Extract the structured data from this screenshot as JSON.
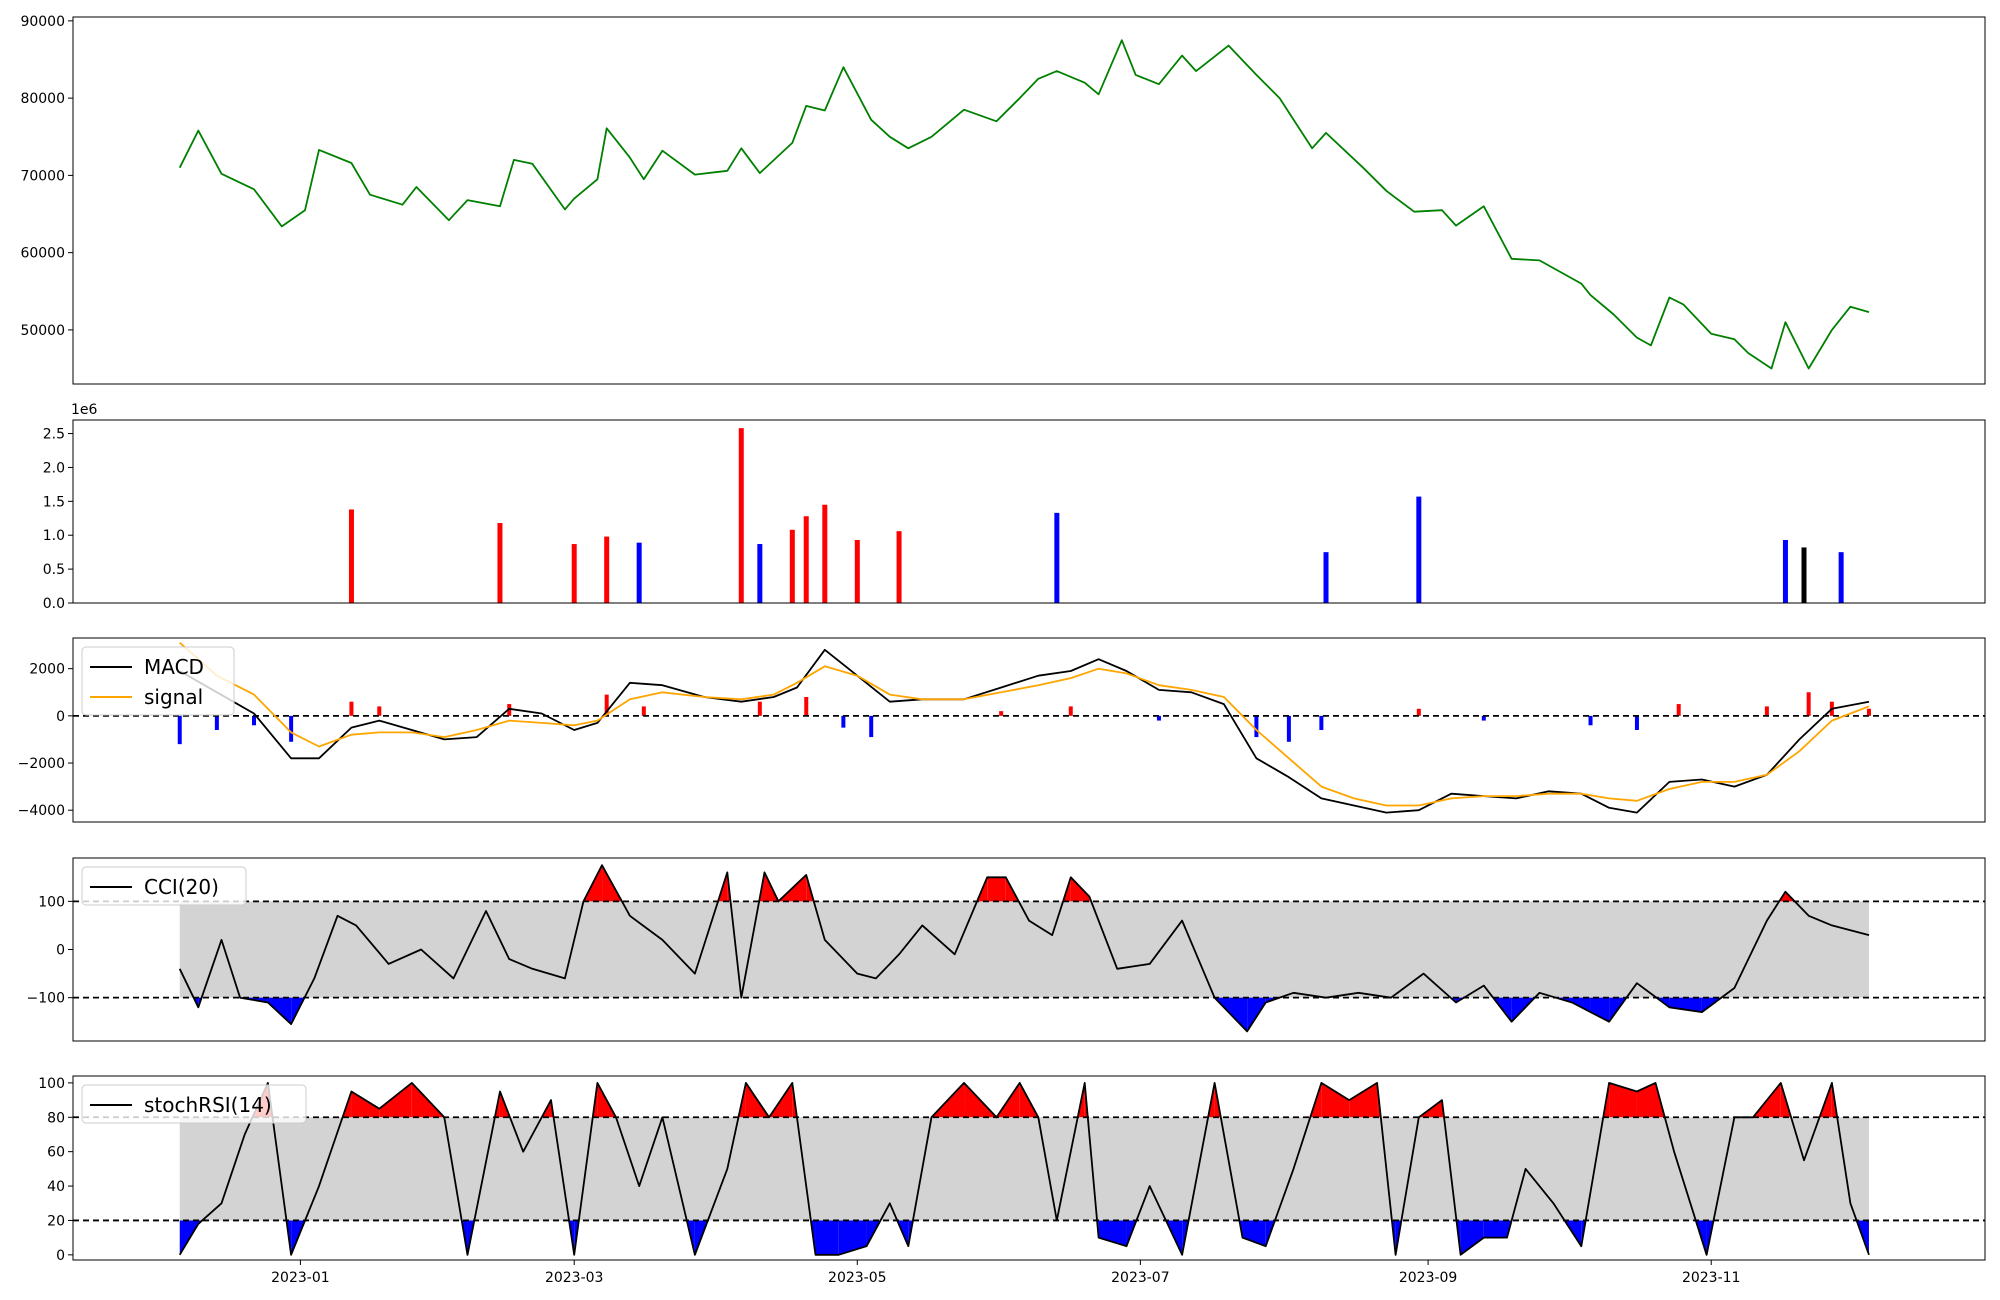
{
  "chart_data": [
    {
      "type": "line",
      "panel": "price",
      "ylim": [
        43000,
        90500
      ],
      "yticks": [
        50000,
        60000,
        70000,
        80000,
        90000
      ],
      "ytick_labels": [
        "50000",
        "60000",
        "70000",
        "80000",
        "90000"
      ],
      "series": [
        {
          "color": "#008000",
          "x": [
            "2022-12-06",
            "2022-12-10",
            "2022-12-15",
            "2022-12-22",
            "2022-12-28",
            "2023-01-02",
            "2023-01-05",
            "2023-01-12",
            "2023-01-16",
            "2023-01-23",
            "2023-01-26",
            "2023-02-02",
            "2023-02-06",
            "2023-02-13",
            "2023-02-16",
            "2023-02-20",
            "2023-02-27",
            "2023-03-01",
            "2023-03-06",
            "2023-03-08",
            "2023-03-13",
            "2023-03-16",
            "2023-03-20",
            "2023-03-27",
            "2023-04-03",
            "2023-04-06",
            "2023-04-10",
            "2023-04-17",
            "2023-04-20",
            "2023-04-24",
            "2023-04-28",
            "2023-05-04",
            "2023-05-08",
            "2023-05-12",
            "2023-05-17",
            "2023-05-24",
            "2023-05-31",
            "2023-06-05",
            "2023-06-09",
            "2023-06-13",
            "2023-06-19",
            "2023-06-22",
            "2023-06-27",
            "2023-06-30",
            "2023-07-05",
            "2023-07-10",
            "2023-07-13",
            "2023-07-20",
            "2023-07-26",
            "2023-07-31",
            "2023-08-07",
            "2023-08-10",
            "2023-08-18",
            "2023-08-23",
            "2023-08-29",
            "2023-09-04",
            "2023-09-07",
            "2023-09-13",
            "2023-09-19",
            "2023-09-25",
            "2023-10-04",
            "2023-10-06",
            "2023-10-11",
            "2023-10-16",
            "2023-10-19",
            "2023-10-23",
            "2023-10-26",
            "2023-11-01",
            "2023-11-06",
            "2023-11-09",
            "2023-11-14",
            "2023-11-17",
            "2023-11-22",
            "2023-11-27",
            "2023-12-01",
            "2023-12-05"
          ],
          "values": [
            71000,
            75800,
            70200,
            68200,
            63400,
            65500,
            73300,
            71600,
            67500,
            66200,
            68500,
            64200,
            66800,
            66000,
            72000,
            71500,
            65600,
            67000,
            69500,
            76100,
            72300,
            69500,
            73200,
            70100,
            70600,
            73500,
            70300,
            74200,
            79000,
            78400,
            84000,
            77200,
            75000,
            73500,
            75000,
            78500,
            77000,
            80000,
            82500,
            83500,
            82000,
            80500,
            87500,
            83000,
            81800,
            85500,
            83500,
            86800,
            83000,
            80000,
            73500,
            75500,
            71000,
            68000,
            65300,
            65500,
            63500,
            66000,
            59200,
            59000,
            56000,
            54500,
            52000,
            49000,
            48000,
            54200,
            53300,
            49500,
            48800,
            47000,
            45000,
            51000,
            45000,
            50000,
            53000,
            52300
          ]
        }
      ]
    },
    {
      "type": "bar",
      "panel": "volume",
      "scale_label": "1e6",
      "ylim": [
        0,
        2.7
      ],
      "yticks": [
        0.0,
        0.5,
        1.0,
        1.5,
        2.0,
        2.5
      ],
      "ytick_labels": [
        "0.0",
        "0.5",
        "1.0",
        "1.5",
        "2.0",
        "2.5"
      ],
      "x": [
        "2023-01-12",
        "2023-02-13",
        "2023-03-01",
        "2023-03-08",
        "2023-03-15",
        "2023-04-06",
        "2023-04-10",
        "2023-04-17",
        "2023-04-20",
        "2023-04-24",
        "2023-05-01",
        "2023-05-10",
        "2023-06-13",
        "2023-08-10",
        "2023-08-30",
        "2023-11-17",
        "2023-11-21",
        "2023-11-29"
      ],
      "values": [
        1.38,
        1.18,
        0.87,
        0.98,
        0.89,
        2.58,
        0.87,
        1.08,
        1.28,
        1.45,
        0.93,
        1.06,
        1.33,
        0.75,
        1.57,
        0.93,
        0.82,
        0.75
      ],
      "colors": [
        "#ff0000",
        "#ff0000",
        "#ff0000",
        "#ff0000",
        "#0000ff",
        "#ff0000",
        "#0000ff",
        "#ff0000",
        "#ff0000",
        "#ff0000",
        "#ff0000",
        "#ff0000",
        "#0000ff",
        "#0000ff",
        "#0000ff",
        "#0000ff",
        "#000000",
        "#0000ff"
      ]
    },
    {
      "type": "line",
      "panel": "macd",
      "ylim": [
        -4500,
        3300
      ],
      "yticks": [
        -4000,
        -2000,
        0,
        2000
      ],
      "ytick_labels": [
        "−4000",
        "−2000",
        "0",
        "2000"
      ],
      "legend": {
        "placement": "top-left",
        "entries": [
          "MACD",
          "signal"
        ]
      },
      "series": [
        {
          "name": "MACD",
          "color": "#000000",
          "x": [
            "2022-12-06",
            "2022-12-14",
            "2022-12-22",
            "2022-12-30",
            "2023-01-05",
            "2023-01-12",
            "2023-01-18",
            "2023-01-25",
            "2023-02-01",
            "2023-02-08",
            "2023-02-15",
            "2023-02-22",
            "2023-03-01",
            "2023-03-06",
            "2023-03-13",
            "2023-03-20",
            "2023-03-29",
            "2023-04-06",
            "2023-04-13",
            "2023-04-18",
            "2023-04-24",
            "2023-05-01",
            "2023-05-08",
            "2023-05-15",
            "2023-05-24",
            "2023-06-01",
            "2023-06-09",
            "2023-06-16",
            "2023-06-22",
            "2023-06-28",
            "2023-07-05",
            "2023-07-12",
            "2023-07-19",
            "2023-07-26",
            "2023-08-02",
            "2023-08-09",
            "2023-08-16",
            "2023-08-23",
            "2023-08-30",
            "2023-09-06",
            "2023-09-13",
            "2023-09-20",
            "2023-09-27",
            "2023-10-04",
            "2023-10-10",
            "2023-10-16",
            "2023-10-23",
            "2023-10-30",
            "2023-11-06",
            "2023-11-13",
            "2023-11-20",
            "2023-11-27",
            "2023-12-05"
          ],
          "values": [
            1900,
            1000,
            100,
            -1800,
            -1800,
            -500,
            -200,
            -600,
            -1000,
            -900,
            300,
            100,
            -600,
            -300,
            1400,
            1300,
            800,
            600,
            800,
            1200,
            2800,
            1700,
            600,
            700,
            700,
            1200,
            1700,
            1900,
            2400,
            1900,
            1100,
            1000,
            500,
            -1800,
            -2600,
            -3500,
            -3800,
            -4100,
            -4000,
            -3300,
            -3400,
            -3500,
            -3200,
            -3300,
            -3900,
            -4100,
            -2800,
            -2700,
            -3000,
            -2500,
            -1000,
            300,
            600
          ]
        },
        {
          "name": "signal",
          "color": "#ffa500",
          "x": [
            "2022-12-06",
            "2022-12-14",
            "2022-12-22",
            "2022-12-30",
            "2023-01-05",
            "2023-01-12",
            "2023-01-18",
            "2023-01-25",
            "2023-02-01",
            "2023-02-08",
            "2023-02-15",
            "2023-02-22",
            "2023-03-01",
            "2023-03-06",
            "2023-03-13",
            "2023-03-20",
            "2023-03-29",
            "2023-04-06",
            "2023-04-13",
            "2023-04-18",
            "2023-04-24",
            "2023-05-01",
            "2023-05-08",
            "2023-05-15",
            "2023-05-24",
            "2023-06-01",
            "2023-06-09",
            "2023-06-16",
            "2023-06-22",
            "2023-06-28",
            "2023-07-05",
            "2023-07-12",
            "2023-07-19",
            "2023-07-26",
            "2023-08-02",
            "2023-08-09",
            "2023-08-16",
            "2023-08-23",
            "2023-08-30",
            "2023-09-06",
            "2023-09-13",
            "2023-09-20",
            "2023-09-27",
            "2023-10-04",
            "2023-10-10",
            "2023-10-16",
            "2023-10-23",
            "2023-10-30",
            "2023-11-06",
            "2023-11-13",
            "2023-11-20",
            "2023-11-27",
            "2023-12-05"
          ],
          "values": [
            3100,
            1700,
            900,
            -700,
            -1300,
            -800,
            -700,
            -700,
            -900,
            -600,
            -200,
            -300,
            -400,
            -200,
            700,
            1000,
            800,
            700,
            900,
            1400,
            2100,
            1700,
            900,
            700,
            700,
            1000,
            1300,
            1600,
            2000,
            1800,
            1300,
            1100,
            800,
            -600,
            -1800,
            -3000,
            -3500,
            -3800,
            -3800,
            -3500,
            -3400,
            -3400,
            -3300,
            -3300,
            -3500,
            -3600,
            -3100,
            -2800,
            -2800,
            -2500,
            -1500,
            -200,
            400
          ]
        }
      ],
      "histogram": {
        "x": [
          "2022-12-06",
          "2022-12-14",
          "2022-12-22",
          "2022-12-30",
          "2023-01-12",
          "2023-01-18",
          "2023-02-15",
          "2023-03-08",
          "2023-03-16",
          "2023-04-10",
          "2023-04-20",
          "2023-04-28",
          "2023-05-04",
          "2023-06-01",
          "2023-06-16",
          "2023-07-05",
          "2023-07-26",
          "2023-08-02",
          "2023-08-09",
          "2023-08-30",
          "2023-09-13",
          "2023-10-06",
          "2023-10-16",
          "2023-10-25",
          "2023-11-13",
          "2023-11-22",
          "2023-11-27",
          "2023-12-05"
        ],
        "values": [
          -1200,
          -600,
          -400,
          -1100,
          600,
          400,
          500,
          900,
          400,
          600,
          800,
          -500,
          -900,
          200,
          400,
          -200,
          -900,
          -1100,
          -600,
          300,
          -200,
          -400,
          -600,
          500,
          400,
          1000,
          600,
          300
        ],
        "colors": [
          "#0000ff",
          "#0000ff",
          "#0000ff",
          "#0000ff",
          "#ff0000",
          "#ff0000",
          "#ff0000",
          "#ff0000",
          "#ff0000",
          "#ff0000",
          "#ff0000",
          "#0000ff",
          "#0000ff",
          "#ff0000",
          "#ff0000",
          "#0000ff",
          "#0000ff",
          "#0000ff",
          "#0000ff",
          "#ff0000",
          "#0000ff",
          "#0000ff",
          "#0000ff",
          "#ff0000",
          "#ff0000",
          "#ff0000",
          "#ff0000",
          "#ff0000"
        ]
      },
      "hlines": [
        0
      ]
    },
    {
      "type": "line",
      "panel": "cci",
      "ylim": [
        -190,
        190
      ],
      "yticks": [
        -100,
        0,
        100
      ],
      "ytick_labels": [
        "−100",
        "0",
        "100"
      ],
      "legend": {
        "placement": "top-left",
        "entries": [
          "CCI(20)"
        ]
      },
      "band": [
        -100,
        100
      ],
      "hlines": [
        -100,
        100
      ],
      "series": [
        {
          "name": "CCI(20)",
          "color": "#000000",
          "x": [
            "2022-12-06",
            "2022-12-10",
            "2022-12-15",
            "2022-12-19",
            "2022-12-25",
            "2022-12-30",
            "2023-01-04",
            "2023-01-09",
            "2023-01-13",
            "2023-01-20",
            "2023-01-27",
            "2023-02-03",
            "2023-02-10",
            "2023-02-15",
            "2023-02-20",
            "2023-02-27",
            "2023-03-03",
            "2023-03-07",
            "2023-03-13",
            "2023-03-20",
            "2023-03-27",
            "2023-04-03",
            "2023-04-06",
            "2023-04-11",
            "2023-04-14",
            "2023-04-20",
            "2023-04-24",
            "2023-05-01",
            "2023-05-05",
            "2023-05-10",
            "2023-05-15",
            "2023-05-22",
            "2023-05-29",
            "2023-06-02",
            "2023-06-07",
            "2023-06-12",
            "2023-06-16",
            "2023-06-20",
            "2023-06-26",
            "2023-07-03",
            "2023-07-10",
            "2023-07-17",
            "2023-07-24",
            "2023-07-28",
            "2023-08-03",
            "2023-08-10",
            "2023-08-17",
            "2023-08-24",
            "2023-08-31",
            "2023-09-07",
            "2023-09-13",
            "2023-09-19",
            "2023-09-25",
            "2023-10-02",
            "2023-10-06",
            "2023-10-10",
            "2023-10-16",
            "2023-10-23",
            "2023-10-30",
            "2023-11-06",
            "2023-11-13",
            "2023-11-17",
            "2023-11-22",
            "2023-11-27",
            "2023-12-05"
          ],
          "values": [
            -40,
            -120,
            20,
            -100,
            -110,
            -155,
            -60,
            70,
            50,
            -30,
            0,
            -60,
            80,
            -20,
            -40,
            -60,
            100,
            175,
            70,
            20,
            -50,
            160,
            -100,
            160,
            100,
            155,
            20,
            -50,
            -60,
            -10,
            50,
            -10,
            150,
            150,
            60,
            30,
            150,
            110,
            -40,
            -30,
            60,
            -100,
            -170,
            -110,
            -90,
            -100,
            -90,
            -100,
            -50,
            -110,
            -75,
            -150,
            -90,
            -110,
            -130,
            -150,
            -70,
            -120,
            -130,
            -80,
            60,
            120,
            70,
            50,
            30
          ]
        }
      ]
    },
    {
      "type": "line",
      "panel": "stochrsi",
      "ylim": [
        -3,
        104
      ],
      "yticks": [
        0,
        20,
        40,
        60,
        80,
        100
      ],
      "ytick_labels": [
        "0",
        "20",
        "40",
        "60",
        "80",
        "100"
      ],
      "legend": {
        "placement": "top-left",
        "entries": [
          "stochRSI(14)"
        ]
      },
      "band": [
        20,
        80
      ],
      "hlines": [
        20,
        80
      ],
      "series": [
        {
          "name": "stochRSI(14)",
          "color": "#000000",
          "x": [
            "2022-12-06",
            "2022-12-10",
            "2022-12-15",
            "2022-12-20",
            "2022-12-25",
            "2022-12-30",
            "2023-01-05",
            "2023-01-12",
            "2023-01-18",
            "2023-01-25",
            "2023-02-01",
            "2023-02-06",
            "2023-02-13",
            "2023-02-18",
            "2023-02-24",
            "2023-03-01",
            "2023-03-06",
            "2023-03-10",
            "2023-03-15",
            "2023-03-20",
            "2023-03-27",
            "2023-04-03",
            "2023-04-07",
            "2023-04-12",
            "2023-04-17",
            "2023-04-22",
            "2023-04-27",
            "2023-05-03",
            "2023-05-08",
            "2023-05-12",
            "2023-05-17",
            "2023-05-24",
            "2023-05-31",
            "2023-06-05",
            "2023-06-09",
            "2023-06-13",
            "2023-06-19",
            "2023-06-22",
            "2023-06-28",
            "2023-07-03",
            "2023-07-10",
            "2023-07-17",
            "2023-07-23",
            "2023-07-28",
            "2023-08-03",
            "2023-08-09",
            "2023-08-15",
            "2023-08-21",
            "2023-08-25",
            "2023-08-30",
            "2023-09-04",
            "2023-09-08",
            "2023-09-13",
            "2023-09-18",
            "2023-09-22",
            "2023-09-28",
            "2023-10-04",
            "2023-10-10",
            "2023-10-16",
            "2023-10-20",
            "2023-10-24",
            "2023-10-31",
            "2023-11-06",
            "2023-11-10",
            "2023-11-16",
            "2023-11-21",
            "2023-11-27",
            "2023-12-01",
            "2023-12-05"
          ],
          "values": [
            0,
            18,
            30,
            70,
            100,
            0,
            40,
            95,
            85,
            100,
            80,
            0,
            95,
            60,
            90,
            0,
            100,
            80,
            40,
            80,
            0,
            50,
            100,
            80,
            100,
            0,
            0,
            5,
            30,
            5,
            80,
            100,
            80,
            100,
            80,
            20,
            100,
            10,
            5,
            40,
            0,
            100,
            10,
            5,
            50,
            100,
            90,
            100,
            0,
            80,
            90,
            0,
            10,
            10,
            50,
            30,
            5,
            100,
            95,
            100,
            60,
            0,
            80,
            80,
            100,
            55,
            100,
            30,
            0
          ]
        }
      ]
    }
  ],
  "x_axis": {
    "ticks": [
      "2023-01",
      "2023-03",
      "2023-05",
      "2023-07",
      "2023-09",
      "2023-11"
    ],
    "tick_dates": [
      "2023-01-01",
      "2023-03-01",
      "2023-05-01",
      "2023-07-01",
      "2023-09-01",
      "2023-11-01"
    ],
    "range": [
      "2022-11-13",
      "2023-12-30"
    ]
  }
}
